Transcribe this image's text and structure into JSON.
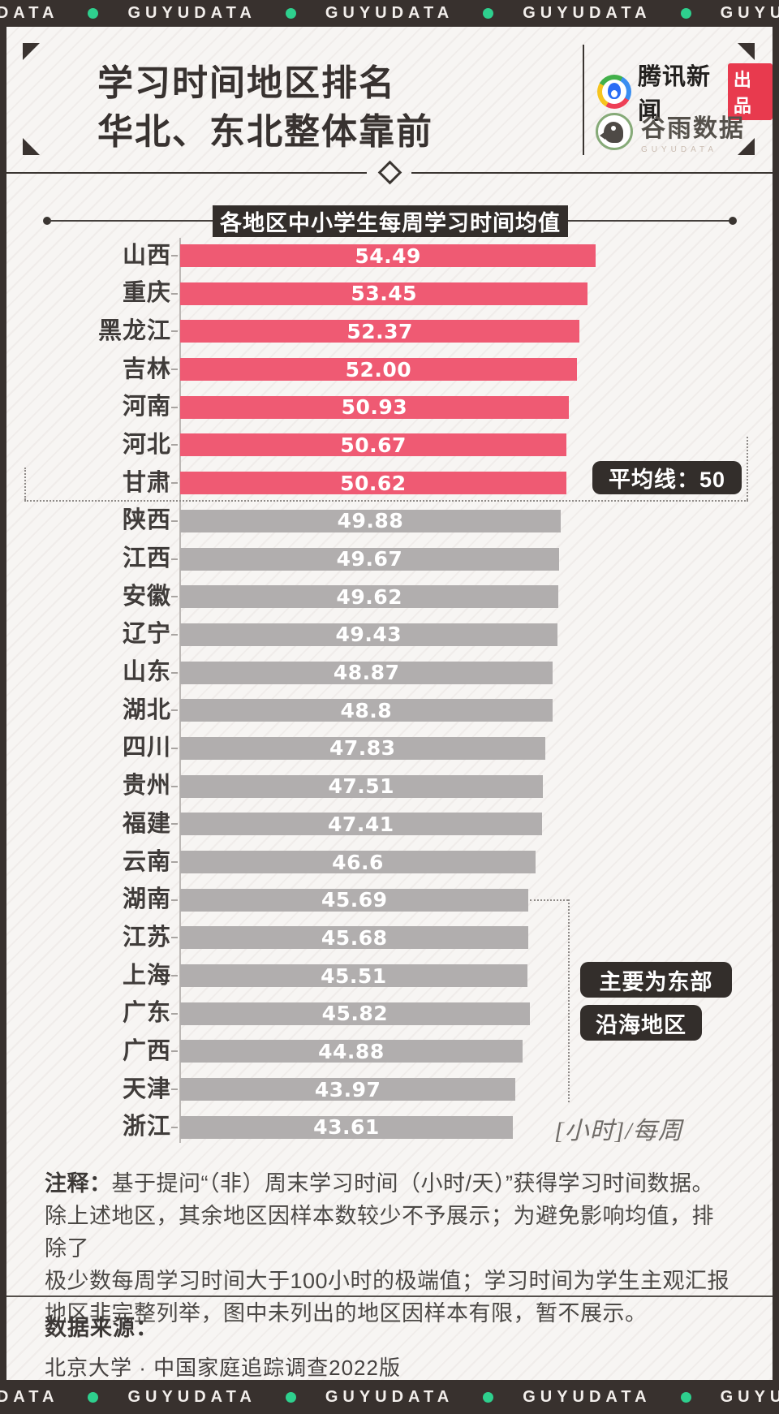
{
  "banner": {
    "word": "GUYUDATA",
    "repeat": 5,
    "dot_color": "#2ed08e"
  },
  "header": {
    "title_line1": "学习时间地区排名",
    "title_line2": "华北、东北整体靠前",
    "tencent": {
      "name": "腾讯新闻",
      "badge": "出品"
    },
    "guyu": {
      "name": "谷雨数据",
      "sub": "GUYUDATA"
    }
  },
  "chart_data": {
    "type": "bar",
    "orientation": "horizontal",
    "title": "各地区中小学生每周学习时间均值",
    "unit_label": "[小时]/每周",
    "xlim": [
      0,
      55
    ],
    "grid": false,
    "categories": [
      "山西",
      "重庆",
      "黑龙江",
      "吉林",
      "河南",
      "河北",
      "甘肃",
      "陕西",
      "江西",
      "安徽",
      "辽宁",
      "山东",
      "湖北",
      "四川",
      "贵州",
      "福建",
      "云南",
      "湖南",
      "江苏",
      "上海",
      "广东",
      "广西",
      "天津",
      "浙江"
    ],
    "values": [
      54.49,
      53.45,
      52.37,
      52.0,
      50.93,
      50.67,
      50.62,
      49.88,
      49.67,
      49.62,
      49.43,
      48.87,
      48.8,
      47.83,
      47.51,
      47.41,
      46.6,
      45.69,
      45.68,
      45.51,
      45.82,
      44.88,
      43.97,
      43.61
    ],
    "value_labels": [
      "54.49",
      "53.45",
      "52.37",
      "52.00",
      "50.93",
      "50.67",
      "50.62",
      "49.88",
      "49.67",
      "49.62",
      "49.43",
      "48.87",
      "48.8",
      "47.83",
      "47.51",
      "47.41",
      "46.6",
      "45.69",
      "45.68",
      "45.51",
      "45.82",
      "44.88",
      "43.97",
      "43.61"
    ],
    "average_line": {
      "label": "平均线：50",
      "value": 50
    },
    "annotations": [
      "主要为东部",
      "沿海地区"
    ],
    "bar_color_above_avg": "#ef5a73",
    "bar_color_below_avg": "#b1aeae"
  },
  "notes": {
    "label": "注释：",
    "lines": [
      "基于提问“（非）周末学习时间（小时/天）”获得学习时间数据。",
      "除上述地区，其余地区因样本数较少不予展示；为避免影响均值，排除了",
      "极少数每周学习时间大于100小时的极端值；学习时间为学生主观汇报",
      "地区非完整列举，图中未列出的地区因样本有限，暂不展示。"
    ]
  },
  "source": {
    "label": "数据来源：",
    "text": "北京大学 · 中国家庭追踪调查2022版"
  }
}
